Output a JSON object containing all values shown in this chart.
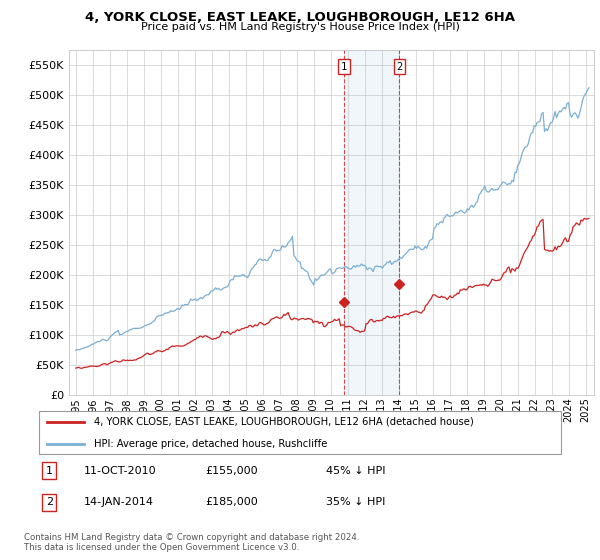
{
  "title": "4, YORK CLOSE, EAST LEAKE, LOUGHBOROUGH, LE12 6HA",
  "subtitle": "Price paid vs. HM Land Registry's House Price Index (HPI)",
  "legend_line1": "4, YORK CLOSE, EAST LEAKE, LOUGHBOROUGH, LE12 6HA (detached house)",
  "legend_line2": "HPI: Average price, detached house, Rushcliffe",
  "footer1": "Contains HM Land Registry data © Crown copyright and database right 2024.",
  "footer2": "This data is licensed under the Open Government Licence v3.0.",
  "transaction1_label": "1",
  "transaction1_date": "11-OCT-2010",
  "transaction1_price": "£155,000",
  "transaction1_pct": "45% ↓ HPI",
  "transaction2_label": "2",
  "transaction2_date": "14-JAN-2014",
  "transaction2_price": "£185,000",
  "transaction2_pct": "35% ↓ HPI",
  "hpi_color": "#7bafd4",
  "price_color": "#cc2222",
  "marker_box_color": "#cc2222",
  "bg_color": "#ffffff",
  "grid_color": "#cccccc",
  "ylim": [
    0,
    575000
  ],
  "yticks": [
    0,
    50000,
    100000,
    150000,
    200000,
    250000,
    300000,
    350000,
    400000,
    450000,
    500000,
    550000
  ],
  "sale1_x": 2010.79,
  "sale1_y": 155000,
  "sale2_x": 2014.04,
  "sale2_y": 185000,
  "xtick_years": [
    1995,
    1996,
    1997,
    1998,
    1999,
    2000,
    2001,
    2002,
    2003,
    2004,
    2005,
    2006,
    2007,
    2008,
    2009,
    2010,
    2011,
    2012,
    2013,
    2014,
    2015,
    2016,
    2017,
    2018,
    2019,
    2020,
    2021,
    2022,
    2023,
    2024,
    2025
  ]
}
